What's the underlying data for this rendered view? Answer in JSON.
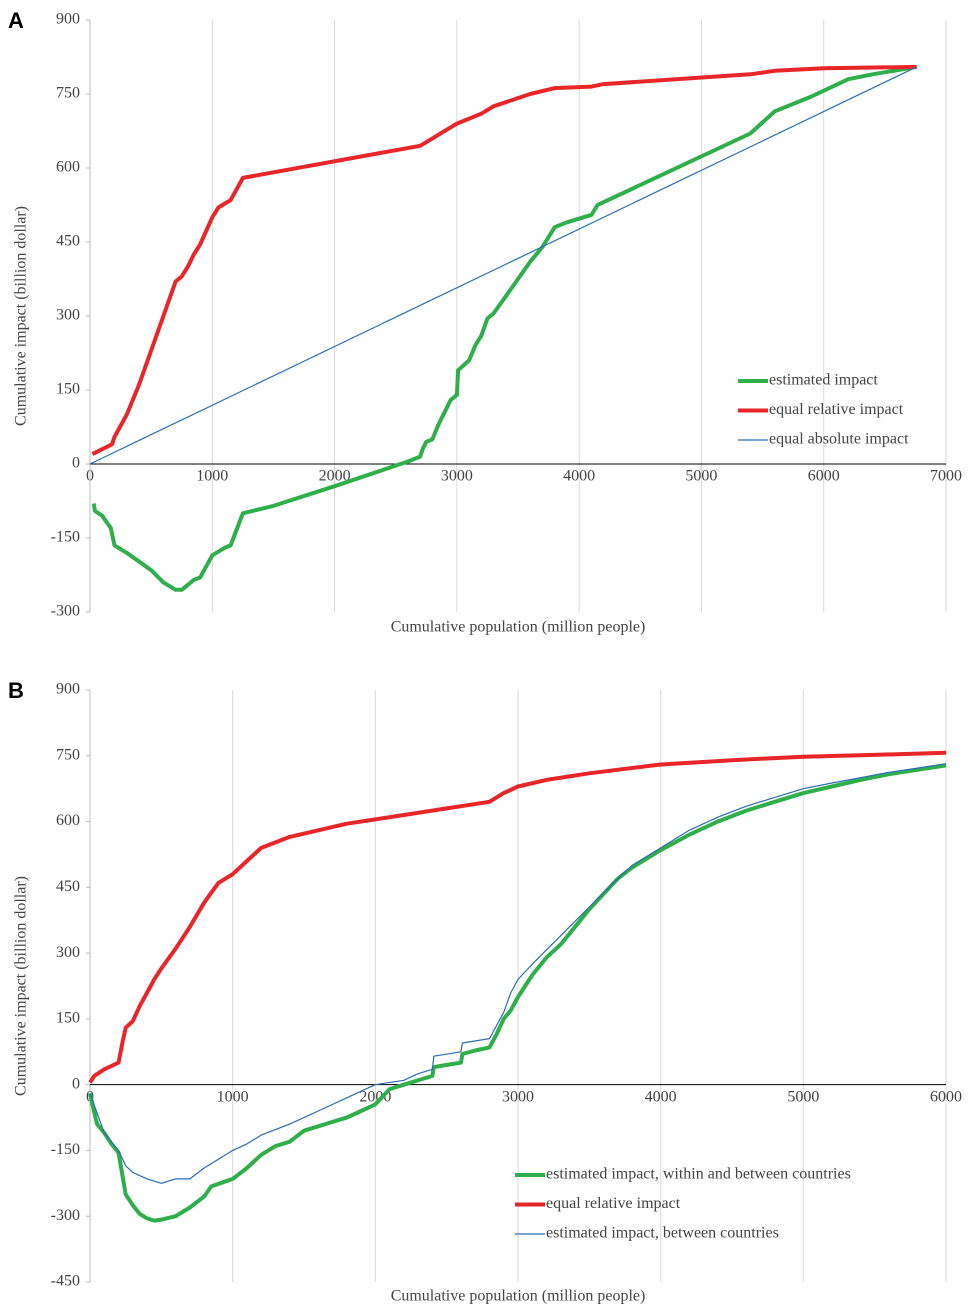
{
  "chart_data": [
    {
      "type": "line",
      "panel_label": "A",
      "xlabel": "Cumulative population (million people)",
      "ylabel": "Cumulative impact (billion dollar)",
      "xlim": [
        0,
        7000
      ],
      "xticks": [
        0,
        1000,
        2000,
        3000,
        4000,
        5000,
        6000,
        7000
      ],
      "ylim": [
        -300,
        900
      ],
      "yticks": [
        -300,
        -150,
        0,
        150,
        300,
        450,
        600,
        750,
        900
      ],
      "grid": "x",
      "legend": "bottom-right",
      "series": [
        {
          "name": "estimated impact",
          "color": "#2eaf4a",
          "line_width": 4,
          "x": [
            30,
            40,
            100,
            170,
            200,
            300,
            500,
            600,
            700,
            750,
            800,
            850,
            900,
            1000,
            1100,
            1150,
            1250,
            1500,
            2000,
            2600,
            2700,
            2720,
            2750,
            2800,
            2850,
            2900,
            2950,
            3000,
            3010,
            3100,
            3150,
            3200,
            3250,
            3300,
            3400,
            3600,
            3700,
            3800,
            3900,
            4100,
            4150,
            5400,
            5600,
            5900,
            6200,
            6400,
            6760
          ],
          "values": [
            -80,
            -95,
            -105,
            -130,
            -165,
            -180,
            -215,
            -240,
            -255,
            -255,
            -245,
            -235,
            -230,
            -185,
            -170,
            -165,
            -100,
            -85,
            -45,
            5,
            15,
            30,
            45,
            50,
            80,
            105,
            130,
            140,
            190,
            210,
            240,
            260,
            295,
            305,
            340,
            410,
            440,
            480,
            490,
            505,
            525,
            670,
            715,
            745,
            780,
            790,
            805
          ]
        },
        {
          "name": "equal relative impact",
          "color": "#e8262a",
          "line_width": 4,
          "x": [
            20,
            180,
            200,
            300,
            400,
            600,
            700,
            750,
            800,
            850,
            900,
            1000,
            1050,
            1150,
            1250,
            2700,
            2800,
            3000,
            3200,
            3300,
            3600,
            3800,
            4100,
            4200,
            5400,
            5600,
            6000,
            6760
          ],
          "values": [
            20,
            40,
            55,
            100,
            160,
            300,
            370,
            380,
            400,
            425,
            445,
            500,
            520,
            535,
            580,
            645,
            660,
            690,
            710,
            725,
            750,
            762,
            765,
            770,
            790,
            797,
            802,
            805
          ]
        },
        {
          "name": "equal absolute impact",
          "color": "#2a6db5",
          "line_width": 1.2,
          "x": [
            0,
            6760
          ],
          "values": [
            0,
            805
          ]
        }
      ]
    },
    {
      "type": "line",
      "panel_label": "B",
      "xlabel": "Cumulative population (million people)",
      "ylabel": "Cumulative impact (billion dollar)",
      "xlim": [
        0,
        6000
      ],
      "xticks": [
        0,
        1000,
        2000,
        3000,
        4000,
        5000,
        6000
      ],
      "ylim": [
        -450,
        900
      ],
      "yticks": [
        -450,
        -300,
        -150,
        0,
        150,
        300,
        450,
        600,
        750,
        900
      ],
      "grid": "x",
      "legend": "bottom-right",
      "series": [
        {
          "name": "estimated impact, within and between countries",
          "color": "#2eaf4a",
          "line_width": 4,
          "x": [
            0,
            20,
            50,
            100,
            150,
            200,
            250,
            300,
            350,
            400,
            450,
            500,
            600,
            700,
            800,
            850,
            1000,
            1100,
            1200,
            1300,
            1400,
            1500,
            1600,
            1700,
            1800,
            1900,
            2000,
            2100,
            2200,
            2400,
            2410,
            2500,
            2600,
            2610,
            2700,
            2800,
            2850,
            2900,
            2950,
            3000,
            3100,
            3200,
            3300,
            3400,
            3500,
            3600,
            3700,
            3800,
            4000,
            4200,
            4400,
            4600,
            4800,
            5000,
            5200,
            5400,
            5600,
            5800,
            6000
          ],
          "values": [
            -20,
            -50,
            -90,
            -110,
            -135,
            -155,
            -250,
            -275,
            -295,
            -305,
            -310,
            -308,
            -300,
            -280,
            -255,
            -232,
            -215,
            -190,
            -160,
            -140,
            -130,
            -105,
            -95,
            -85,
            -75,
            -60,
            -45,
            -10,
            0,
            20,
            40,
            45,
            50,
            70,
            78,
            85,
            115,
            150,
            170,
            200,
            250,
            290,
            320,
            360,
            400,
            435,
            470,
            495,
            535,
            570,
            600,
            625,
            645,
            665,
            680,
            695,
            708,
            718,
            728
          ]
        },
        {
          "name": "equal relative impact",
          "color": "#e8262a",
          "line_width": 4,
          "x": [
            0,
            30,
            100,
            200,
            230,
            250,
            300,
            350,
            400,
            450,
            500,
            600,
            700,
            800,
            900,
            1000,
            1100,
            1200,
            1400,
            1600,
            1800,
            2000,
            2200,
            2500,
            2800,
            2900,
            3000,
            3200,
            3500,
            4000,
            4500,
            5000,
            5500,
            6000
          ],
          "values": [
            5,
            20,
            35,
            50,
            100,
            130,
            145,
            180,
            210,
            240,
            265,
            310,
            360,
            415,
            460,
            480,
            510,
            540,
            565,
            580,
            595,
            605,
            615,
            630,
            645,
            665,
            680,
            695,
            710,
            730,
            740,
            748,
            752,
            757
          ]
        },
        {
          "name": "estimated impact, between countries",
          "color": "#2a6db5",
          "line_width": 1.2,
          "x": [
            0,
            100,
            200,
            250,
            300,
            400,
            500,
            600,
            700,
            800,
            900,
            1000,
            1100,
            1200,
            1400,
            1600,
            1800,
            2000,
            2200,
            2300,
            2400,
            2410,
            2600,
            2610,
            2800,
            2900,
            2950,
            3000,
            3100,
            3300,
            3500,
            3700,
            3800,
            4000,
            4200,
            4400,
            4600,
            4800,
            5000,
            5200,
            5400,
            5600,
            5800,
            6000
          ],
          "values": [
            -20,
            -110,
            -150,
            -185,
            -200,
            -215,
            -225,
            -215,
            -215,
            -190,
            -170,
            -150,
            -135,
            -115,
            -90,
            -60,
            -30,
            0,
            10,
            25,
            35,
            65,
            75,
            95,
            105,
            165,
            210,
            240,
            275,
            340,
            405,
            470,
            500,
            540,
            580,
            610,
            635,
            655,
            675,
            688,
            700,
            712,
            722,
            732
          ]
        }
      ]
    }
  ]
}
